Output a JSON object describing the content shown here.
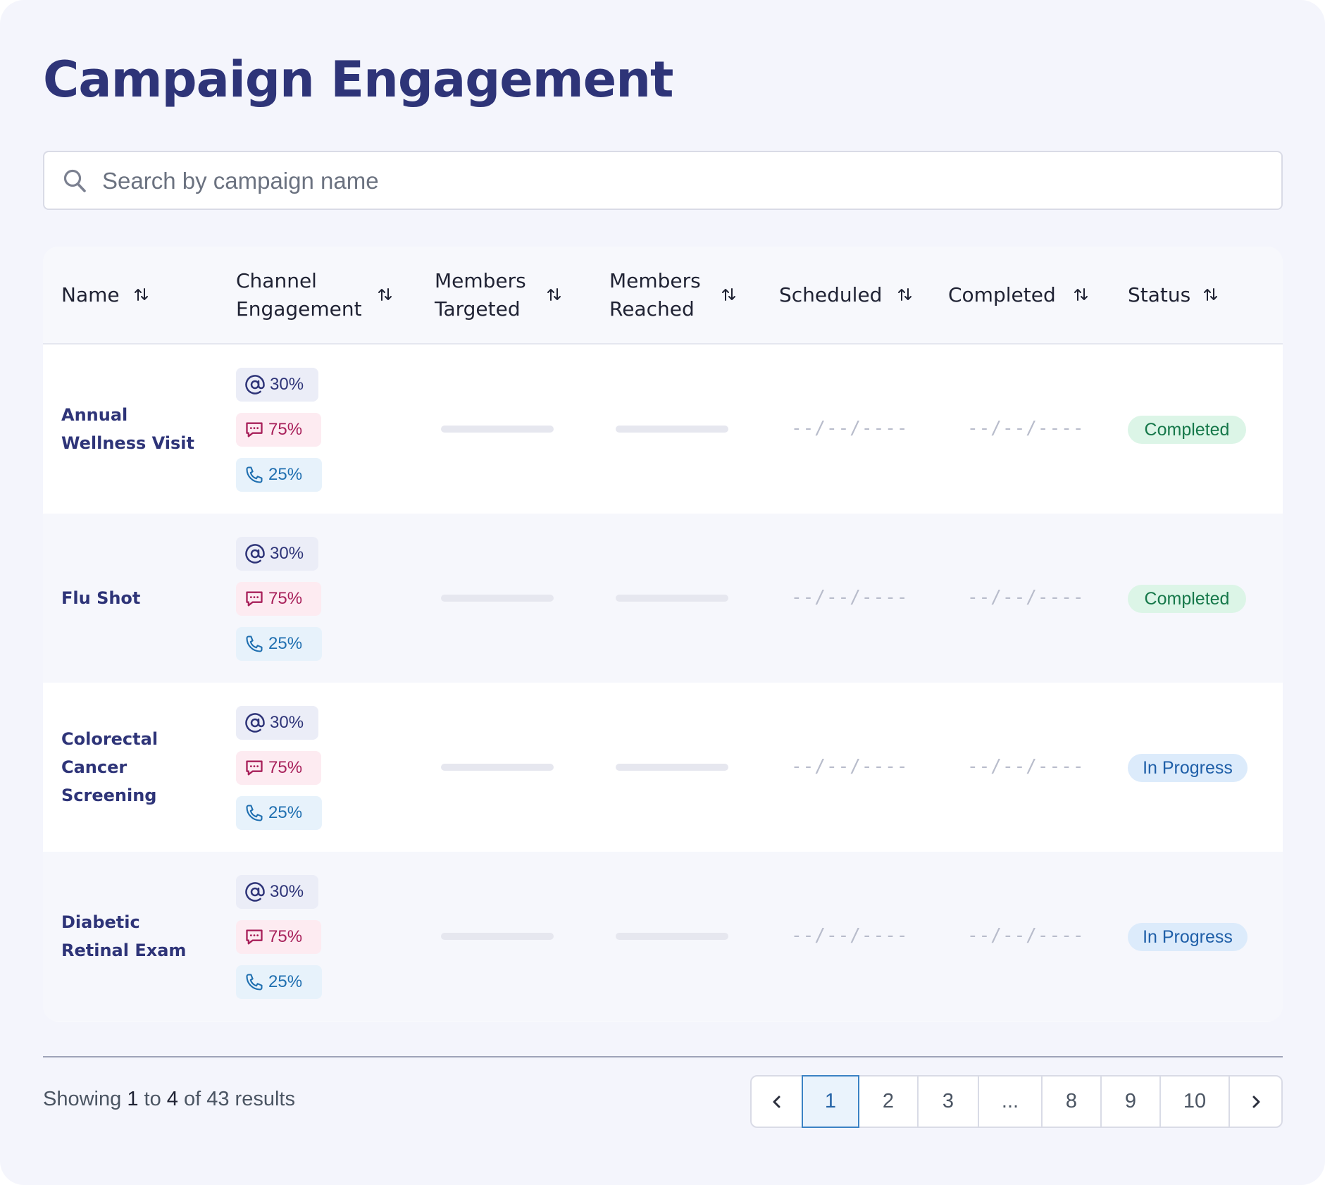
{
  "title": "Campaign Engagement",
  "search": {
    "placeholder": "Search by campaign name",
    "value": ""
  },
  "columns": [
    {
      "label": "Name"
    },
    {
      "label": "Channel Engagement"
    },
    {
      "label": "Members Targeted"
    },
    {
      "label": "Members Reached"
    },
    {
      "label": "Scheduled"
    },
    {
      "label": "Completed"
    },
    {
      "label": "Status"
    }
  ],
  "rows": [
    {
      "name": "Annual Wellness Visit",
      "email": "30%",
      "sms": "75%",
      "phone": "25%",
      "scheduled": "--/--/----",
      "completed": "--/--/----",
      "status": "Completed"
    },
    {
      "name": "Flu Shot",
      "email": "30%",
      "sms": "75%",
      "phone": "25%",
      "scheduled": "--/--/----",
      "completed": "--/--/----",
      "status": "Completed"
    },
    {
      "name": "Colorectal Cancer Screening",
      "email": "30%",
      "sms": "75%",
      "phone": "25%",
      "scheduled": "--/--/----",
      "completed": "--/--/----",
      "status": "In Progress"
    },
    {
      "name": "Diabetic Retinal Exam",
      "email": "30%",
      "sms": "75%",
      "phone": "25%",
      "scheduled": "--/--/----",
      "completed": "--/--/----",
      "status": "In Progress"
    }
  ],
  "footer": {
    "showing": "Showing",
    "from": "1",
    "to_word": "to",
    "to": "4",
    "of_word": "of",
    "total": "43",
    "results_word": "results"
  },
  "pagination": {
    "current": "1",
    "pages": [
      "1",
      "2",
      "3",
      "...",
      "8",
      "9",
      "10"
    ]
  },
  "colors": {
    "title": "#2e3478",
    "completed_bg": "#dcf5e7",
    "completed_text": "#16784a",
    "progress_bg": "#dcebfb",
    "progress_text": "#1f5fa8",
    "email": "#2e3478",
    "sms": "#a8205a",
    "phone": "#1f6fb0",
    "page_active": "#2563a6"
  },
  "icons": {
    "search": "search-icon",
    "sort": "sort-icon",
    "email": "at-sign-icon",
    "sms": "chat-bubble-icon",
    "phone": "phone-icon",
    "prev": "chevron-left-icon",
    "next": "chevron-right-icon"
  }
}
